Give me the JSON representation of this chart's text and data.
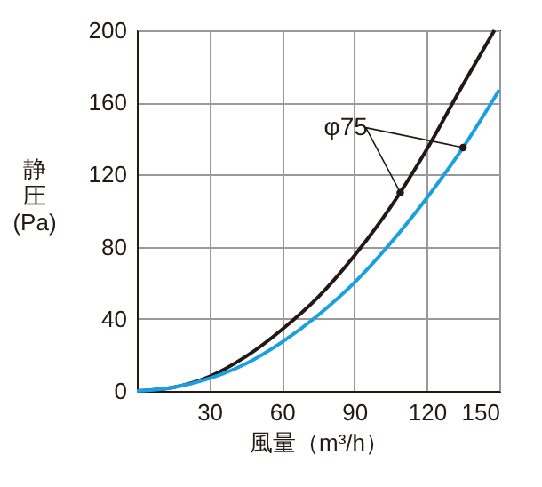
{
  "chart_data": {
    "type": "line",
    "xlabel": "風量（m³/h）",
    "ylabel": "静圧(Pa)",
    "series": [
      {
        "color": "#231815",
        "x": [
          0,
          15,
          30,
          45,
          60,
          75,
          90,
          105,
          120,
          135,
          148
        ],
        "values": [
          0,
          2,
          8,
          19,
          34,
          52,
          75,
          102,
          134,
          170,
          200
        ]
      },
      {
        "color": "#1aa0e0",
        "x": [
          0,
          15,
          30,
          45,
          60,
          75,
          90,
          105,
          120,
          135,
          150
        ],
        "values": [
          0,
          2,
          7,
          15,
          27,
          42,
          60,
          82,
          107,
          135,
          167
        ]
      }
    ],
    "annotations": [
      {
        "text": "φ75",
        "x": 109,
        "y": 110
      }
    ],
    "xlim": [
      0,
      150
    ],
    "xticks": [
      30,
      60,
      90,
      120,
      150
    ],
    "ylim": [
      0,
      200
    ],
    "yticks": [
      0,
      40,
      80,
      120,
      160,
      200
    ],
    "grid": true,
    "marker": "none",
    "line_style": "solid"
  }
}
